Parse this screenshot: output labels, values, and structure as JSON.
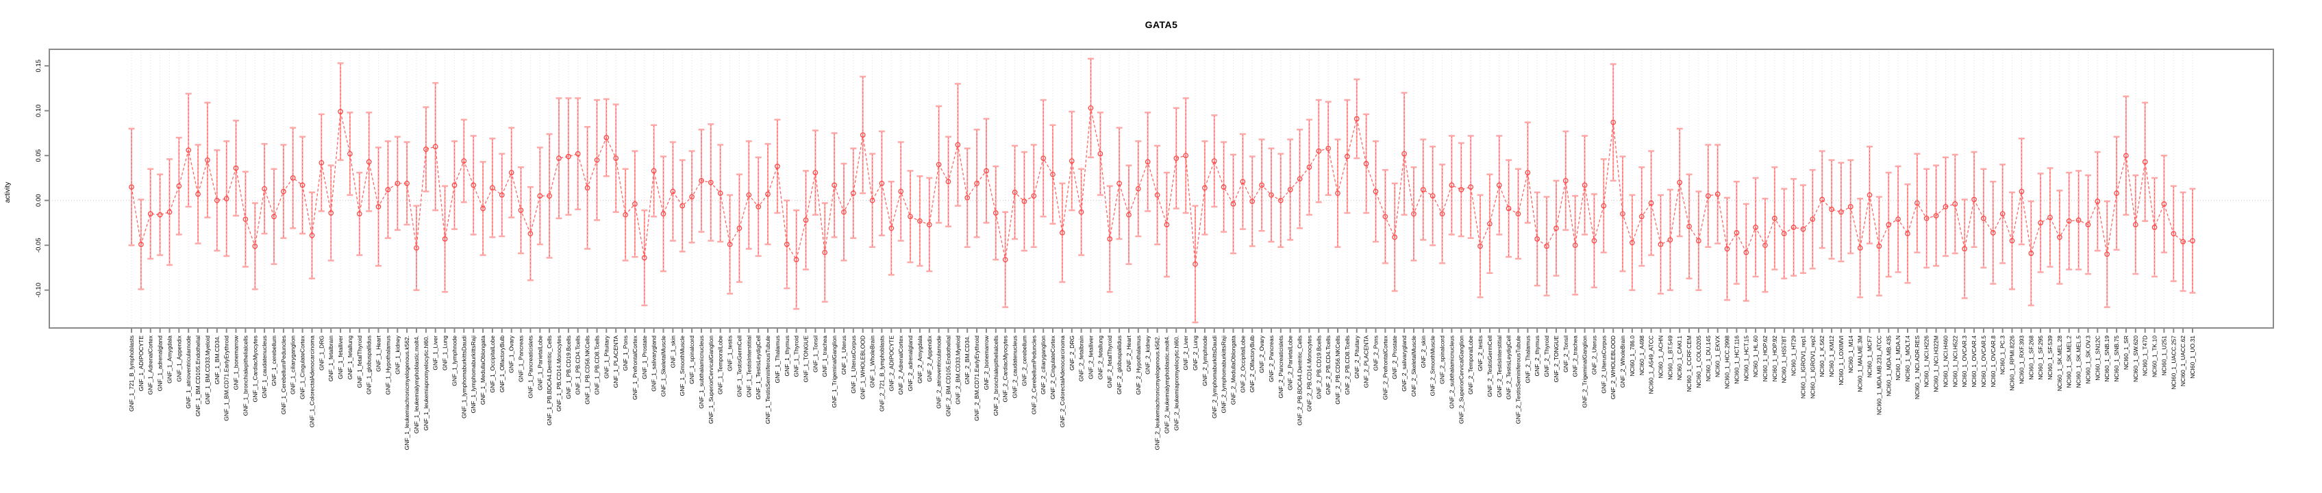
{
  "title": "GATA5",
  "ylabel": "activity",
  "colors": {
    "marker": "#ff4545",
    "series_line": "#ff5a5a",
    "errorbar_stem": "#ffa8a8",
    "errorbar_cap": "#ffa8a8",
    "errorbar_dash": "#ff5a5a",
    "gridline": "#dcdcdc",
    "zero_line": "#c4c4c4",
    "axis_frame": "#8a8a8a",
    "tick_text": "#000000",
    "background": "#ffffff"
  },
  "chart_data": {
    "type": "scatter",
    "subtype": "points-with-error-bars-dashed-line",
    "title": "GATA5",
    "xlabel": "",
    "ylabel": "activity",
    "ylim": [
      -0.142,
      0.168
    ],
    "yticks": [
      0.15,
      0.1,
      0.05,
      0.0,
      -0.05,
      -0.1
    ],
    "ytick_labels": [
      "0.15",
      "0.10",
      "0.05",
      "0.00",
      "-0.05",
      "-0.10"
    ],
    "grid": "vertical-dotted-per-category",
    "zero_reference_line": true,
    "legend": "none",
    "marker": "open-circle",
    "line_style": "dashed",
    "categories": [
      "GNF_1_721_B_lymphoblasts",
      "GNF_1_ADIPOCYTE",
      "GNF_1_AdrenalCortex",
      "GNF_1_adrenalgland",
      "GNF_1_Amygdala",
      "GNF_1_Appendix",
      "GNF_1_atrioventricularnode",
      "GNF_1_BM.CD105.Endothelial",
      "GNF_1_BM.CD33.Myeloid",
      "GNF_1_BM.CD34.",
      "GNF_1_BM.CD71.EarlyErythroid",
      "GNF_1_bonemarrow",
      "GNF_1_bronchialepithelialcells",
      "GNF_1_CardiacMyocytes",
      "GNF_1_caudatenucleus",
      "GNF_1_cerebellum",
      "GNF_1_CerebellumPeduncles",
      "GNF_1_ciliaryganglion",
      "GNF_1_CingulateCortex",
      "GNF_1_ColorectalAdenocarcinoma",
      "GNF_1_DRG",
      "GNF_1_fetalbrain",
      "GNF_1_fetalliver",
      "GNF_1_fetallung",
      "GNF_1_fetalThyroid",
      "GNF_1_globuspallidus",
      "GNF_1_Heart",
      "GNF_1_Hypothalamus",
      "GNF_1_kidney",
      "GNF_1_leukemiachronicmyelogenous.k562.",
      "GNF_1_leukemialymphoblastic.molt4.",
      "GNF_1_leukemiapromyelocytic.hl60.",
      "GNF_1_Liver",
      "GNF_1_Lung",
      "GNF_1_lymphnode",
      "GNF_1_lymphomaburkittsDaudi",
      "GNF_1_lymphomaburkittsRaji",
      "GNF_1_MedullaOblongata",
      "GNF_1_OccipitalLobe",
      "GNF_1_OlfactoryBulb",
      "GNF_1_Ovary",
      "GNF_1_Pancreas",
      "GNF_1_Pancreaticislets",
      "GNF_1_ParietalLobe",
      "GNF_1_PB.BDCA4.Dentritic_Cells",
      "GNF_1_PB.CD14.Monocytes",
      "GNF_1_PB.CD19.Bcells",
      "GNF_1_PB.CD4.Tcells",
      "GNF_1_PB.CD56.NKCells",
      "GNF_1_PB.CD8.Tcells",
      "GNF_1_Pituitary",
      "GNF_1_PLACENTA",
      "GNF_1_Pons",
      "GNF_1_PrefrontalCortex",
      "GNF_1_Prostate",
      "GNF_1_salivarygland",
      "GNF_1_SkeletalMuscle",
      "GNF_1_skin",
      "GNF_1_SmoothMuscle",
      "GNF_1_spinalcord",
      "GNF_1_subthalamicnucleus",
      "GNF_1_SuperiorCervicalGanglion",
      "GNF_1_TemporalLobe",
      "GNF_1_testis",
      "GNF_1_TestisGermCell",
      "GNF_1_TestisInterstitial",
      "GNF_1_TestisLeydigCell",
      "GNF_1_TestisSeminiferousTubule",
      "GNF_1_Thalamus",
      "GNF_1_thymus",
      "GNF_1_Thyroid",
      "GNF_1_TONGUE",
      "GNF_1_Tonsil",
      "GNF_1_trachea",
      "GNF_1_TrigeminalGanglion",
      "GNF_1_Uterus",
      "GNF_1_UterusCorpus",
      "GNF_1_WHOLEBLOOD",
      "GNF_1_WholeBrain",
      "GNF_2_721_B_lymphoblasts",
      "GNF_2_ADIPOCYTE",
      "GNF_2_AdrenalCortex",
      "GNF_2_adrenalgland",
      "GNF_2_Amygdala",
      "GNF_2_Appendix",
      "GNF_2_atrioventricularnode",
      "GNF_2_BM.CD105.Endothelial",
      "GNF_2_BM.CD33.Myeloid",
      "GNF_2_BM.CD34.",
      "GNF_2_BM.CD71.EarlyErythroid",
      "GNF_2_bonemarrow",
      "GNF_2_bronchialepithelialcells",
      "GNF_2_CardiacMyocytes",
      "GNF_2_caudatenucleus",
      "GNF_2_cerebellum",
      "GNF_2_CerebellumPeduncles",
      "GNF_2_ciliaryganglion",
      "GNF_2_CingulateCortex",
      "GNF_2_ColorectalAdenocarcinoma",
      "GNF_2_DRG",
      "GNF_2_fetalbrain",
      "GNF_2_fetalliver",
      "GNF_2_fetallung",
      "GNF_2_fetalThyroid",
      "GNF_2_globuspallidus",
      "GNF_2_Heart",
      "GNF_2_Hypothalamus",
      "GNF_2_kidney",
      "GNF_2_leukemiachronicmyelogenous.k562.",
      "GNF_2_leukemialymphoblastic.molt4.",
      "GNF_2_leukemiapromyelocytic.hl60.",
      "GNF_2_Liver",
      "GNF_2_Lung",
      "GNF_2_lymphnode",
      "GNF_2_lymphomaburkittsDaudi",
      "GNF_2_lymphomaburkittsRaji",
      "GNF_2_MedullaOblongata",
      "GNF_2_OccipitalLobe",
      "GNF_2_OlfactoryBulb",
      "GNF_2_Ovary",
      "GNF_2_Pancreas",
      "GNF_2_Pancreaticislets",
      "GNF_2_ParietalLobe",
      "GNF_2_PB.BDCA4.Dentritic_Cells",
      "GNF_2_PB.CD14.Monocytes",
      "GNF_2_PB.CD19.Bcells",
      "GNF_2_PB.CD4.Tcells",
      "GNF_2_PB.CD56.NKCells",
      "GNF_2_PB.CD8.Tcells",
      "GNF_2_Pituitary",
      "GNF_2_PLACENTA",
      "GNF_2_Pons",
      "GNF_2_PrefrontalCortex",
      "GNF_2_Prostate",
      "GNF_2_salivarygland",
      "GNF_2_SkeletalMuscle",
      "GNF_2_skin",
      "GNF_2_SmoothMuscle",
      "GNF_2_spinalcord",
      "GNF_2_subthalamicnucleus",
      "GNF_2_SuperiorCervicalGanglion",
      "GNF_2_TemporalLobe",
      "GNF_2_testis",
      "GNF_2_TestisGermCell",
      "GNF_2_TestisInterstitial",
      "GNF_2_TestisLeydigCell",
      "GNF_2_TestisSeminiferousTubule",
      "GNF_2_Thalamus",
      "GNF_2_thymus",
      "GNF_2_Thyroid",
      "GNF_2_TONGUE",
      "GNF_2_Tonsil",
      "GNF_2_trachea",
      "GNF_2_TrigeminalGanglion",
      "GNF_2_Uterus",
      "GNF_2_UterusCorpus",
      "GNF_2_WHOLEBLOOD",
      "GNF_2_WholeBrain",
      "NCI60_1_786.0",
      "NCI60_1_A498",
      "NCI60_1_A549_ATCC",
      "NCI60_1_ACHN",
      "NCI60_1_BT.549",
      "NCI60_1_CAKI.1",
      "NCI60_1_CCRF.CEM",
      "NCI60_1_COLO205",
      "NCI60_1_DU.145",
      "NCI60_1_EKVX",
      "NCI60_1_HCC.2998",
      "NCI60_1_HCT.116",
      "NCI60_1_HCT.15",
      "NCI60_1_HL.60",
      "NCI60_1_HOP.62",
      "NCI60_1_HOP.92",
      "NCI60_1_HS578T",
      "NCI60_1_HT29",
      "NCI60_1_IGROV1_rep1",
      "NCI60_1_IGROV1_rep2",
      "NCI60_1_K.562",
      "NCI60_1_KM12",
      "NCI60_1_LOXIMVI",
      "NCI60_1_M14",
      "NCI60_1_MALME.3M",
      "NCI60_1_MCF7",
      "NCI60_1_MDA.MB.231_ATCC",
      "NCI60_1_MDA.MB.435",
      "NCI60_1_MDA.N",
      "NCI60_1_MOLT.4",
      "NCI60_1_NCI.ADR.RES",
      "NCI60_1_NCI.H226",
      "NCI60_1_NCI.H322M",
      "NCI60_1_NCI.H460",
      "NCI60_1_NCI.H522",
      "NCI60_1_OVCAR.3",
      "NCI60_1_OVCAR.4",
      "NCI60_1_OVCAR.5",
      "NCI60_1_OVCAR.8",
      "NCI60_1_PC.3",
      "NCI60_1_RPMI.8226",
      "NCI60_1_RXF.393",
      "NCI60_1_SF.268",
      "NCI60_1_SF.295",
      "NCI60_1_SF.539",
      "NCI60_1_SK.MEL.28",
      "NCI60_1_SK.MEL.2",
      "NCI60_1_SK.MEL.5",
      "NCI60_1_SK.OV.3",
      "NCI60_1_SN12C",
      "NCI60_1_SNB.19",
      "NCI60_1_SNB.75",
      "NCI60_1_SR",
      "NCI60_1_SW.620",
      "NCI60_1_T47D",
      "NCI60_1_TK.10",
      "NCI60_1_U251",
      "NCI60_1_UACC.257",
      "NCI60_1_UACC.62",
      "NCI60_1_UO.31"
    ],
    "values": [
      0.015,
      -0.049,
      -0.015,
      -0.016,
      -0.013,
      0.016,
      0.056,
      0.007,
      0.045,
      0.0,
      0.002,
      0.036,
      -0.021,
      -0.051,
      0.013,
      -0.018,
      0.01,
      0.025,
      0.017,
      -0.039,
      0.042,
      -0.014,
      0.099,
      0.052,
      -0.015,
      0.043,
      -0.007,
      0.012,
      0.019,
      0.019,
      -0.053,
      0.057,
      0.06,
      -0.043,
      0.017,
      0.044,
      0.017,
      -0.009,
      0.014,
      0.006,
      0.031,
      -0.011,
      -0.037,
      0.005,
      0.005,
      0.047,
      0.049,
      0.052,
      0.014,
      0.045,
      0.07,
      0.047,
      -0.016,
      -0.004,
      -0.064,
      0.033,
      -0.015,
      0.01,
      -0.006,
      0.004,
      0.022,
      0.02,
      0.008,
      -0.049,
      -0.031,
      0.006,
      -0.007,
      0.007,
      0.038,
      -0.049,
      -0.066,
      -0.022,
      0.031,
      -0.058,
      0.017,
      -0.013,
      0.008,
      0.073,
      0.0,
      0.019,
      -0.031,
      0.01,
      -0.018,
      -0.023,
      -0.027,
      0.04,
      0.021,
      0.062,
      0.003,
      0.019,
      0.033,
      -0.014,
      -0.066,
      0.009,
      -0.001,
      0.005,
      0.047,
      0.029,
      -0.036,
      0.044,
      -0.013,
      0.103,
      0.052,
      -0.043,
      0.019,
      -0.016,
      0.013,
      0.043,
      0.006,
      -0.027,
      0.047,
      0.05,
      -0.071,
      0.014,
      0.044,
      0.015,
      -0.004,
      0.021,
      -0.001,
      0.017,
      0.006,
      0.0,
      0.012,
      0.024,
      0.037,
      0.055,
      0.058,
      0.008,
      0.049,
      0.091,
      0.041,
      0.01,
      -0.018,
      -0.041,
      0.052,
      -0.015,
      0.012,
      0.005,
      -0.015,
      0.017,
      0.012,
      0.015,
      -0.051,
      -0.026,
      0.017,
      -0.009,
      -0.015,
      0.031,
      -0.043,
      -0.051,
      -0.031,
      0.022,
      -0.05,
      0.017,
      -0.045,
      -0.006,
      0.087,
      -0.015,
      -0.047,
      -0.018,
      -0.003,
      -0.049,
      -0.044,
      0.02,
      -0.029,
      -0.045,
      0.005,
      0.007,
      -0.054,
      -0.036,
      -0.058,
      -0.03,
      -0.05,
      -0.02,
      -0.037,
      -0.03,
      -0.032,
      -0.021,
      0.001,
      -0.01,
      -0.013,
      -0.007,
      -0.053,
      0.006,
      -0.051,
      -0.027,
      -0.021,
      -0.037,
      -0.003,
      -0.02,
      -0.017,
      -0.007,
      -0.004,
      -0.054,
      0.001,
      -0.02,
      -0.036,
      -0.015,
      -0.045,
      0.01,
      -0.059,
      -0.025,
      -0.019,
      -0.041,
      -0.023,
      -0.022,
      -0.027,
      -0.001,
      -0.06,
      0.008,
      0.05,
      -0.027,
      0.043,
      -0.03,
      -0.004,
      -0.037,
      -0.046,
      -0.045
    ],
    "errors": [
      0.065,
      0.05,
      0.05,
      0.045,
      0.059,
      0.054,
      0.063,
      0.055,
      0.064,
      0.056,
      0.064,
      0.053,
      0.053,
      0.048,
      0.05,
      0.053,
      0.052,
      0.056,
      0.054,
      0.048,
      0.054,
      0.053,
      0.054,
      0.046,
      0.046,
      0.055,
      0.066,
      0.054,
      0.052,
      0.046,
      0.047,
      0.047,
      0.071,
      0.059,
      0.049,
      0.046,
      0.055,
      0.052,
      0.055,
      0.046,
      0.05,
      0.048,
      0.052,
      0.054,
      0.069,
      0.067,
      0.065,
      0.062,
      0.068,
      0.067,
      0.043,
      0.06,
      0.051,
      0.059,
      0.053,
      0.051,
      0.064,
      0.055,
      0.051,
      0.051,
      0.057,
      0.065,
      0.054,
      0.055,
      0.06,
      0.06,
      0.055,
      0.056,
      0.052,
      0.049,
      0.055,
      0.055,
      0.047,
      0.055,
      0.058,
      0.054,
      0.05,
      0.065,
      0.052,
      0.058,
      0.052,
      0.055,
      0.051,
      0.05,
      0.052,
      0.065,
      0.05,
      0.068,
      0.055,
      0.06,
      0.058,
      0.052,
      0.053,
      0.052,
      0.055,
      0.057,
      0.065,
      0.055,
      0.055,
      0.055,
      0.048,
      0.055,
      0.046,
      0.059,
      0.062,
      0.055,
      0.053,
      0.055,
      0.055,
      0.058,
      0.056,
      0.064,
      0.065,
      0.052,
      0.051,
      0.05,
      0.055,
      0.053,
      0.05,
      0.051,
      0.052,
      0.052,
      0.056,
      0.055,
      0.053,
      0.057,
      0.052,
      0.06,
      0.063,
      0.044,
      0.055,
      0.056,
      0.052,
      0.06,
      0.068,
      0.052,
      0.056,
      0.055,
      0.055,
      0.055,
      0.052,
      0.057,
      0.057,
      0.055,
      0.055,
      0.054,
      0.05,
      0.056,
      0.052,
      0.055,
      0.053,
      0.055,
      0.055,
      0.055,
      0.052,
      0.052,
      0.065,
      0.064,
      0.053,
      0.055,
      0.058,
      0.055,
      0.056,
      0.06,
      0.058,
      0.055,
      0.057,
      0.055,
      0.057,
      0.057,
      0.054,
      0.055,
      0.052,
      0.057,
      0.05,
      0.054,
      0.049,
      0.055,
      0.054,
      0.055,
      0.055,
      0.052,
      0.055,
      0.054,
      0.055,
      0.058,
      0.059,
      0.055,
      0.055,
      0.055,
      0.056,
      0.055,
      0.055,
      0.055,
      0.053,
      0.055,
      0.057,
      0.055,
      0.054,
      0.059,
      0.058,
      0.055,
      0.055,
      0.052,
      0.054,
      0.055,
      0.055,
      0.055,
      0.059,
      0.063,
      0.066,
      0.055,
      0.066,
      0.055,
      0.054,
      0.053,
      0.055,
      0.058
    ]
  }
}
